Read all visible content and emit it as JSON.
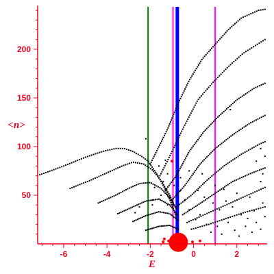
{
  "chart_data": {
    "type": "scatter",
    "xlabel": "E",
    "ylabel": "<n>",
    "xlim": [
      -7.2,
      3.4
    ],
    "ylim": [
      0,
      245
    ],
    "x_ticks": [
      -6,
      -4,
      -2,
      0,
      2
    ],
    "y_ticks": [
      50,
      100,
      150,
      200
    ],
    "x_tick_labels": [
      "-6",
      "-4",
      "-2",
      "0",
      "2"
    ],
    "y_tick_labels": [
      "50",
      "100",
      "150",
      "200"
    ],
    "grid": false,
    "colors": {
      "axis": "#e8001c",
      "points": "#000000",
      "red_points": "#ff0000",
      "green_line": "#007a00",
      "magenta_line": "#ff00ff",
      "blue_line": "#0000ff"
    },
    "vertical_lines": [
      {
        "x": -2.1,
        "color": "#007a00",
        "width": 2
      },
      {
        "x": -0.95,
        "color": "#ff00ff",
        "width": 2
      },
      {
        "x": -0.75,
        "color": "#0000ff",
        "width": 5
      },
      {
        "x": 1.0,
        "color": "#ff00ff",
        "width": 2
      }
    ],
    "arcs": [
      {
        "points": [
          [
            -7.1,
            71
          ],
          [
            -6.0,
            80
          ],
          [
            -5.0,
            89
          ],
          [
            -4.2,
            95
          ],
          [
            -3.6,
            98
          ],
          [
            -3.2,
            98
          ],
          [
            -2.8,
            95
          ],
          [
            -2.4,
            90
          ],
          [
            -2.1,
            85
          ],
          [
            -1.7,
            72
          ],
          [
            -1.3,
            56
          ],
          [
            -1.0,
            40
          ],
          [
            -0.8,
            28
          ]
        ],
        "n": 85
      },
      {
        "points": [
          [
            -5.7,
            57
          ],
          [
            -4.8,
            65
          ],
          [
            -4.0,
            73
          ],
          [
            -3.3,
            80
          ],
          [
            -2.8,
            84
          ],
          [
            -2.3,
            82
          ],
          [
            -1.9,
            76
          ],
          [
            -1.5,
            65
          ],
          [
            -1.1,
            50
          ],
          [
            -0.85,
            38
          ]
        ],
        "n": 65
      },
      {
        "points": [
          [
            -4.4,
            42
          ],
          [
            -3.6,
            50
          ],
          [
            -3.0,
            57
          ],
          [
            -2.5,
            62
          ],
          [
            -2.0,
            63
          ],
          [
            -1.5,
            57
          ],
          [
            -1.1,
            47
          ],
          [
            -0.8,
            36
          ]
        ],
        "n": 50
      },
      {
        "points": [
          [
            -3.5,
            31
          ],
          [
            -2.8,
            38
          ],
          [
            -2.2,
            44
          ],
          [
            -1.6,
            46
          ],
          [
            -1.1,
            40
          ],
          [
            -0.75,
            30
          ]
        ],
        "n": 40
      },
      {
        "points": [
          [
            -2.8,
            23
          ],
          [
            -2.2,
            29
          ],
          [
            -1.6,
            33
          ],
          [
            -1.1,
            31
          ],
          [
            -0.7,
            24
          ]
        ],
        "n": 30
      },
      {
        "points": [
          [
            -2.2,
            14
          ],
          [
            -1.6,
            18
          ],
          [
            -1.1,
            19
          ],
          [
            -0.7,
            15
          ]
        ],
        "n": 22
      },
      {
        "points": [
          [
            -2.0,
            82
          ],
          [
            -1.6,
            100
          ],
          [
            -1.2,
            118
          ],
          [
            -0.7,
            145
          ],
          [
            -0.2,
            168
          ],
          [
            0.4,
            190
          ],
          [
            1.0,
            205
          ],
          [
            1.6,
            220
          ],
          [
            2.2,
            232
          ],
          [
            3.0,
            240
          ],
          [
            3.3,
            241
          ]
        ],
        "n": 95
      },
      {
        "points": [
          [
            -1.6,
            68
          ],
          [
            -1.1,
            90
          ],
          [
            -0.5,
            118
          ],
          [
            0.2,
            148
          ],
          [
            0.9,
            166
          ],
          [
            1.6,
            182
          ],
          [
            2.3,
            196
          ],
          [
            3.3,
            210
          ]
        ],
        "n": 80
      },
      {
        "points": [
          [
            -1.3,
            55
          ],
          [
            -0.8,
            70
          ],
          [
            -0.2,
            95
          ],
          [
            0.5,
            116
          ],
          [
            1.2,
            132
          ],
          [
            2.0,
            148
          ],
          [
            2.8,
            160
          ],
          [
            3.3,
            165
          ]
        ],
        "n": 75
      },
      {
        "points": [
          [
            -1.0,
            45
          ],
          [
            -0.4,
            60
          ],
          [
            0.3,
            82
          ],
          [
            1.0,
            98
          ],
          [
            1.8,
            112
          ],
          [
            2.6,
            124
          ],
          [
            3.3,
            132
          ]
        ],
        "n": 65
      },
      {
        "points": [
          [
            -0.8,
            38
          ],
          [
            -0.1,
            50
          ],
          [
            0.6,
            65
          ],
          [
            1.4,
            80
          ],
          [
            2.2,
            92
          ],
          [
            3.0,
            102
          ],
          [
            3.3,
            105
          ]
        ],
        "n": 55
      },
      {
        "points": [
          [
            -0.5,
            30
          ],
          [
            0.2,
            40
          ],
          [
            1.0,
            52
          ],
          [
            1.8,
            64
          ],
          [
            2.6,
            72
          ],
          [
            3.3,
            78
          ]
        ],
        "n": 50
      },
      {
        "points": [
          [
            -0.3,
            22
          ],
          [
            0.5,
            30
          ],
          [
            1.3,
            38
          ],
          [
            2.1,
            46
          ],
          [
            2.9,
            54
          ],
          [
            3.3,
            58
          ]
        ],
        "n": 40
      },
      {
        "points": [
          [
            -0.1,
            15
          ],
          [
            0.7,
            20
          ],
          [
            1.5,
            26
          ],
          [
            2.3,
            32
          ],
          [
            3.3,
            38
          ]
        ],
        "n": 35
      }
    ],
    "scatter_points": [
      [
        -1.3,
        86
      ],
      [
        -1.6,
        80
      ],
      [
        -1.2,
        72
      ],
      [
        -1.4,
        64
      ],
      [
        -1.8,
        58
      ],
      [
        -1.5,
        50
      ],
      [
        -1.1,
        48
      ],
      [
        -1.9,
        45
      ],
      [
        -1.2,
        40
      ],
      [
        -0.6,
        55
      ],
      [
        -0.4,
        45
      ],
      [
        -0.2,
        35
      ],
      [
        0.1,
        25
      ],
      [
        0.3,
        30
      ],
      [
        0.6,
        20
      ],
      [
        0.8,
        12
      ],
      [
        1.1,
        18
      ],
      [
        1.3,
        10
      ],
      [
        1.6,
        22
      ],
      [
        1.9,
        14
      ],
      [
        2.1,
        8
      ],
      [
        2.4,
        18
      ],
      [
        2.7,
        12
      ],
      [
        2.9,
        22
      ],
      [
        3.1,
        15
      ],
      [
        3.3,
        28
      ],
      [
        0.2,
        55
      ],
      [
        0.5,
        48
      ],
      [
        0.9,
        42
      ],
      [
        1.2,
        35
      ],
      [
        1.5,
        44
      ],
      [
        1.8,
        38
      ],
      [
        2.2,
        30
      ],
      [
        2.5,
        26
      ],
      [
        2.8,
        34
      ],
      [
        3.2,
        42
      ],
      [
        3.1,
        64
      ],
      [
        3.2,
        72
      ],
      [
        3.3,
        90
      ],
      [
        3.1,
        98
      ],
      [
        1.7,
        138
      ],
      [
        2.9,
        85
      ],
      [
        -2.2,
        108
      ],
      [
        -1.9,
        40
      ],
      [
        -2.5,
        38
      ],
      [
        -2.7,
        32
      ],
      [
        -0.9,
        60
      ],
      [
        -0.6,
        68
      ],
      [
        -0.2,
        75
      ],
      [
        0.4,
        72
      ],
      [
        1.0,
        60
      ],
      [
        1.4,
        56
      ],
      [
        2.0,
        52
      ],
      [
        2.6,
        48
      ]
    ],
    "red_points": [
      [
        -1.0,
        85
      ],
      [
        -1.35,
        5
      ],
      [
        -1.15,
        3
      ],
      [
        -0.9,
        6
      ],
      [
        -0.05,
        2
      ],
      [
        0.3,
        3
      ],
      [
        -1.4,
        2
      ]
    ],
    "red_blob": {
      "x": -0.7,
      "y": 3,
      "size": 6
    }
  }
}
